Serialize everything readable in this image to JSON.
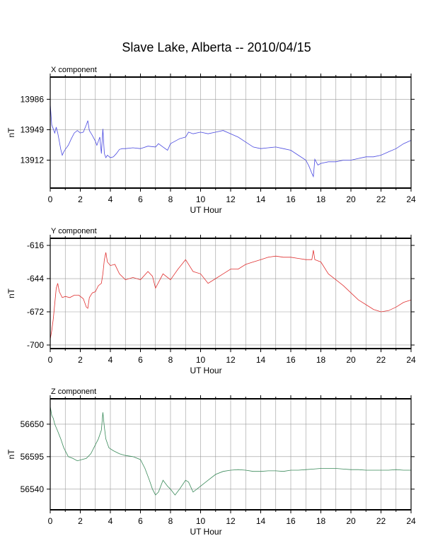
{
  "title": "Slave Lake, Alberta -- 2010/04/15",
  "chart_data": [
    {
      "type": "line",
      "panel_label": "X component",
      "xlabel": "UT Hour",
      "ylabel": "nT",
      "xlim": [
        0,
        24
      ],
      "ylim": [
        13878,
        14013
      ],
      "xticks": [
        0,
        2,
        4,
        6,
        8,
        10,
        12,
        14,
        16,
        18,
        20,
        22,
        24
      ],
      "yticks": [
        13912,
        13949,
        13986
      ],
      "grid": true,
      "color": "#4a4ae0",
      "series": [
        {
          "x": [
            0.0,
            0.1,
            0.2,
            0.3,
            0.4,
            0.5,
            0.6,
            0.7,
            0.8,
            0.9,
            1.0,
            1.2,
            1.4,
            1.6,
            1.8,
            2.0,
            2.2,
            2.4,
            2.5,
            2.6,
            2.8,
            3.0,
            3.1,
            3.3,
            3.4,
            3.5,
            3.6,
            3.7,
            3.8,
            4.0,
            4.2,
            4.4,
            4.6,
            4.8,
            5.0,
            5.5,
            6.0,
            6.5,
            7.0,
            7.2,
            7.5,
            7.8,
            8.0,
            8.3,
            8.6,
            9.0,
            9.2,
            9.5,
            10.0,
            10.5,
            11.0,
            11.5,
            12.0,
            12.5,
            13.0,
            13.5,
            14.0,
            14.5,
            15.0,
            15.5,
            16.0,
            16.5,
            17.0,
            17.2,
            17.4,
            17.5,
            17.6,
            17.8,
            18.0,
            18.5,
            19.0,
            19.5,
            20.0,
            20.5,
            21.0,
            21.5,
            22.0,
            22.5,
            23.0,
            23.5,
            24.0
          ],
          "y": [
            13980,
            13955,
            13950,
            13945,
            13952,
            13945,
            13935,
            13925,
            13918,
            13922,
            13925,
            13930,
            13938,
            13945,
            13948,
            13945,
            13946,
            13955,
            13960,
            13948,
            13942,
            13935,
            13930,
            13940,
            13920,
            13950,
            13920,
            13915,
            13918,
            13915,
            13916,
            13920,
            13925,
            13926,
            13926,
            13927,
            13926,
            13929,
            13928,
            13932,
            13928,
            13924,
            13932,
            13935,
            13938,
            13940,
            13946,
            13944,
            13946,
            13944,
            13946,
            13948,
            13944,
            13940,
            13934,
            13928,
            13926,
            13927,
            13928,
            13926,
            13924,
            13918,
            13912,
            13905,
            13896,
            13892,
            13913,
            13906,
            13908,
            13910,
            13910,
            13912,
            13912,
            13914,
            13916,
            13916,
            13918,
            13922,
            13926,
            13932,
            13936
          ]
        }
      ]
    },
    {
      "type": "line",
      "panel_label": "Y component",
      "xlabel": "UT Hour",
      "ylabel": "nT",
      "xlim": [
        0,
        24
      ],
      "ylim": [
        -703,
        -610
      ],
      "xticks": [
        0,
        2,
        4,
        6,
        8,
        10,
        12,
        14,
        16,
        18,
        20,
        22,
        24
      ],
      "yticks": [
        -616,
        -644,
        -672,
        -700
      ],
      "grid": true,
      "color": "#e03030",
      "series": [
        {
          "x": [
            0.0,
            0.1,
            0.2,
            0.3,
            0.4,
            0.5,
            0.6,
            0.8,
            1.0,
            1.3,
            1.6,
            1.9,
            2.2,
            2.4,
            2.5,
            2.6,
            2.8,
            3.0,
            3.2,
            3.4,
            3.5,
            3.6,
            3.7,
            3.8,
            4.0,
            4.3,
            4.6,
            5.0,
            5.5,
            6.0,
            6.5,
            6.8,
            7.0,
            7.5,
            8.0,
            8.5,
            9.0,
            9.5,
            10.0,
            10.5,
            11.0,
            11.5,
            12.0,
            12.5,
            13.0,
            13.5,
            14.0,
            14.5,
            15.0,
            15.5,
            16.0,
            16.5,
            17.0,
            17.4,
            17.5,
            17.6,
            18.0,
            18.5,
            19.0,
            19.5,
            20.0,
            20.5,
            21.0,
            21.5,
            22.0,
            22.5,
            23.0,
            23.5,
            24.0
          ],
          "y": [
            -695,
            -688,
            -678,
            -665,
            -652,
            -648,
            -655,
            -660,
            -659,
            -660,
            -658,
            -658,
            -661,
            -668,
            -669,
            -660,
            -656,
            -655,
            -650,
            -648,
            -640,
            -628,
            -622,
            -630,
            -633,
            -632,
            -640,
            -645,
            -643,
            -645,
            -638,
            -642,
            -652,
            -640,
            -645,
            -636,
            -628,
            -638,
            -640,
            -648,
            -644,
            -640,
            -636,
            -636,
            -632,
            -630,
            -628,
            -626,
            -625,
            -626,
            -626,
            -627,
            -628,
            -628,
            -620,
            -628,
            -630,
            -640,
            -645,
            -650,
            -656,
            -662,
            -666,
            -670,
            -672,
            -671,
            -668,
            -664,
            -662
          ]
        }
      ]
    },
    {
      "type": "line",
      "panel_label": "Z component",
      "xlabel": "UT Hour",
      "ylabel": "nT",
      "xlim": [
        0,
        24
      ],
      "ylim": [
        56505,
        56693
      ],
      "xticks": [
        0,
        2,
        4,
        6,
        8,
        10,
        12,
        14,
        16,
        18,
        20,
        22,
        24
      ],
      "yticks": [
        56540,
        56595,
        56650
      ],
      "grid": true,
      "color": "#3a8a5a",
      "series": [
        {
          "x": [
            0.0,
            0.1,
            0.2,
            0.3,
            0.5,
            0.7,
            0.9,
            1.2,
            1.5,
            1.8,
            2.1,
            2.4,
            2.7,
            3.0,
            3.2,
            3.4,
            3.5,
            3.6,
            3.7,
            3.9,
            4.2,
            4.6,
            5.0,
            5.5,
            6.0,
            6.3,
            6.6,
            6.8,
            7.0,
            7.2,
            7.5,
            7.8,
            8.0,
            8.3,
            8.6,
            9.0,
            9.2,
            9.5,
            10.0,
            10.5,
            11.0,
            11.5,
            12.0,
            12.5,
            13.0,
            13.5,
            14.0,
            14.5,
            15.0,
            15.5,
            16.0,
            16.5,
            17.0,
            17.5,
            18.0,
            18.5,
            19.0,
            19.5,
            20.0,
            20.5,
            21.0,
            21.5,
            22.0,
            22.5,
            23.0,
            23.5,
            24.0
          ],
          "y": [
            56680,
            56665,
            56660,
            56650,
            56638,
            56625,
            56610,
            56595,
            56592,
            56588,
            56590,
            56592,
            56600,
            56615,
            56625,
            56640,
            56670,
            56645,
            56625,
            56610,
            56605,
            56600,
            56597,
            56595,
            56590,
            56575,
            56555,
            56540,
            56530,
            56535,
            56555,
            56545,
            56540,
            56530,
            56540,
            56555,
            56552,
            56535,
            56545,
            56555,
            56565,
            56570,
            56572,
            56573,
            56572,
            56570,
            56570,
            56571,
            56571,
            56570,
            56572,
            56572,
            56573,
            56574,
            56575,
            56575,
            56575,
            56574,
            56573,
            56573,
            56572,
            56572,
            56572,
            56572,
            56573,
            56572,
            56572
          ]
        }
      ]
    }
  ]
}
